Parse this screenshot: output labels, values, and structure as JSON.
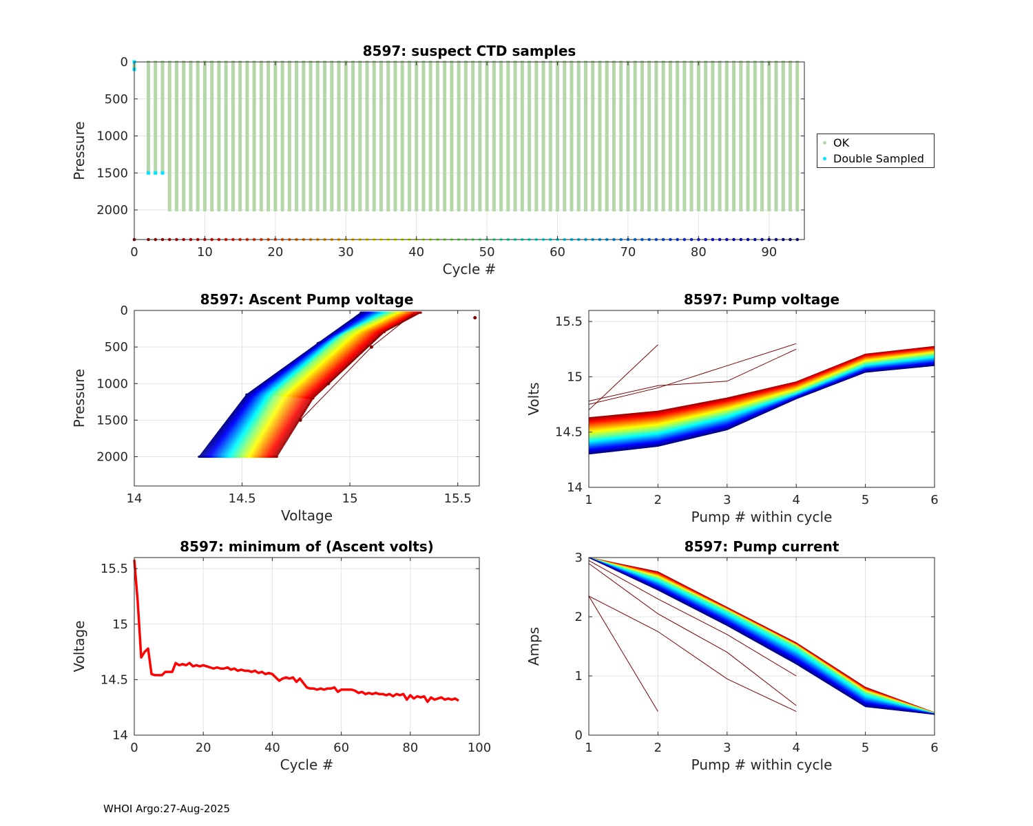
{
  "footer": {
    "text": "WHOI Argo:27-Aug-2025"
  },
  "legend": {
    "items": [
      {
        "label": "OK",
        "color": "#b5d7a8"
      },
      {
        "label": "Double Sampled",
        "color": "#00e5ff"
      }
    ]
  },
  "chart_data": [
    {
      "id": "ctd",
      "type": "scatter",
      "title": "8597: suspect CTD samples",
      "xlabel": "Cycle #",
      "ylabel": "Pressure",
      "xlim": [
        0,
        95
      ],
      "ylim": [
        0,
        2400
      ],
      "y_reversed": true,
      "grid": true,
      "xticks": [
        0,
        10,
        20,
        30,
        40,
        50,
        60,
        70,
        80,
        90
      ],
      "yticks": [
        0,
        500,
        1000,
        1500,
        2000
      ],
      "series": [
        {
          "name": "OK",
          "color": "#b5d7a8",
          "profile_max_pressure": {
            "cycles_0_to_1": 100,
            "cycles_2_to_4": 1500,
            "cycles_5_to_94": 2000
          }
        },
        {
          "name": "Double Sampled",
          "color": "#00e5ff",
          "points": [
            [
              0,
              0
            ],
            [
              0,
              100
            ],
            [
              2,
              1500
            ],
            [
              3,
              1500
            ],
            [
              4,
              1500
            ]
          ]
        }
      ],
      "cycle_markers": {
        "pressure": 2400,
        "first_cycle": 0,
        "last_cycle": 94,
        "missing_cycles": [
          1
        ]
      }
    },
    {
      "id": "ascent",
      "type": "line",
      "title": "8597: Ascent Pump voltage",
      "xlabel": "Voltage",
      "ylabel": "Pressure",
      "xlim": [
        14,
        15.6
      ],
      "ylim": [
        0,
        2400
      ],
      "y_reversed": true,
      "grid": true,
      "xticks": [
        14,
        14.5,
        15,
        15.5
      ],
      "yticks": [
        0,
        500,
        1000,
        1500,
        2000
      ],
      "note": "one line per cycle, colored by cycle number (red = early, blue = late)",
      "anchor_profiles": [
        {
          "cycle": 5,
          "points": [
            [
              14.65,
              2000
            ],
            [
              14.82,
              1200
            ],
            [
              15.15,
              300
            ],
            [
              15.32,
              30
            ]
          ]
        },
        {
          "cycle": 48,
          "points": [
            [
              14.48,
              2000
            ],
            [
              14.65,
              1150
            ],
            [
              14.98,
              300
            ],
            [
              15.18,
              30
            ]
          ]
        },
        {
          "cycle": 94,
          "points": [
            [
              14.3,
              2000
            ],
            [
              14.52,
              1150
            ],
            [
              14.85,
              450
            ],
            [
              15.05,
              30
            ]
          ]
        }
      ],
      "outliers": [
        [
          15.58,
          100
        ],
        [
          14.9,
          1000
        ],
        [
          15.1,
          500
        ],
        [
          14.77,
          1500
        ]
      ]
    },
    {
      "id": "pumpv",
      "type": "line",
      "title": "8597: Pump voltage",
      "xlabel": "Pump # within cycle",
      "ylabel": "Volts",
      "xlim": [
        1,
        6
      ],
      "ylim": [
        14,
        15.6
      ],
      "grid": true,
      "xticks": [
        1,
        2,
        3,
        4,
        5,
        6
      ],
      "yticks": [
        14,
        14.5,
        15,
        15.5
      ],
      "anchor_profiles": [
        {
          "cycle": 5,
          "values": [
            14.62,
            14.68,
            14.8,
            14.95,
            15.2,
            15.27
          ]
        },
        {
          "cycle": 48,
          "values": [
            14.45,
            14.52,
            14.67,
            14.86,
            15.12,
            15.2
          ]
        },
        {
          "cycle": 94,
          "values": [
            14.3,
            14.37,
            14.52,
            14.8,
            15.04,
            15.1
          ]
        }
      ],
      "outliers": [
        {
          "values": [
            14.7,
            15.29
          ]
        },
        {
          "values": [
            14.75,
            14.9,
            15.1,
            15.3
          ]
        },
        {
          "values": [
            14.78,
            14.92,
            14.96,
            15.25
          ]
        }
      ]
    },
    {
      "id": "minv",
      "type": "line",
      "title": "8597: minimum of (Ascent volts)",
      "xlabel": "Cycle #",
      "ylabel": "Voltage",
      "xlim": [
        0,
        100
      ],
      "ylim": [
        14,
        15.6
      ],
      "grid": true,
      "xticks": [
        0,
        20,
        40,
        60,
        80,
        100
      ],
      "yticks": [
        14,
        14.5,
        15,
        15.5
      ],
      "color": "#ff0000",
      "x": [
        0,
        1,
        2,
        3,
        4,
        5,
        6,
        7,
        8,
        9,
        10,
        11,
        12,
        13,
        14,
        15,
        16,
        17,
        18,
        19,
        20,
        21,
        22,
        23,
        24,
        25,
        26,
        27,
        28,
        29,
        30,
        31,
        32,
        33,
        34,
        35,
        36,
        37,
        38,
        39,
        40,
        41,
        42,
        43,
        44,
        45,
        46,
        47,
        48,
        49,
        50,
        51,
        52,
        53,
        54,
        55,
        56,
        57,
        58,
        59,
        60,
        61,
        62,
        63,
        64,
        65,
        66,
        67,
        68,
        69,
        70,
        71,
        72,
        73,
        74,
        75,
        76,
        77,
        78,
        79,
        80,
        81,
        82,
        83,
        84,
        85,
        86,
        87,
        88,
        89,
        90,
        91,
        92,
        93,
        94
      ],
      "values": [
        15.58,
        15.2,
        14.7,
        14.75,
        14.78,
        14.55,
        14.54,
        14.54,
        14.54,
        14.57,
        14.57,
        14.57,
        14.65,
        14.63,
        14.64,
        14.63,
        14.65,
        14.62,
        14.63,
        14.62,
        14.63,
        14.62,
        14.61,
        14.6,
        14.61,
        14.6,
        14.6,
        14.61,
        14.59,
        14.6,
        14.58,
        14.59,
        14.58,
        14.58,
        14.57,
        14.58,
        14.56,
        14.57,
        14.55,
        14.56,
        14.55,
        14.52,
        14.49,
        14.51,
        14.52,
        14.51,
        14.52,
        14.48,
        14.51,
        14.47,
        14.43,
        14.42,
        14.42,
        14.41,
        14.42,
        14.41,
        14.42,
        14.42,
        14.43,
        14.39,
        14.41,
        14.41,
        14.41,
        14.41,
        14.4,
        14.38,
        14.39,
        14.37,
        14.38,
        14.37,
        14.38,
        14.37,
        14.37,
        14.36,
        14.37,
        14.35,
        14.37,
        14.36,
        14.37,
        14.32,
        14.36,
        14.33,
        14.35,
        14.34,
        14.35,
        14.3,
        14.34,
        14.32,
        14.33,
        14.34,
        14.32,
        14.33,
        14.32,
        14.33,
        14.31
      ]
    },
    {
      "id": "pumpc",
      "type": "line",
      "title": "8597: Pump current",
      "xlabel": "Pump # within cycle",
      "ylabel": "Amps",
      "xlim": [
        1,
        6
      ],
      "ylim": [
        0,
        3
      ],
      "grid": true,
      "xticks": [
        1,
        2,
        3,
        4,
        5,
        6
      ],
      "yticks": [
        0,
        1,
        2,
        3
      ],
      "anchor_profiles": [
        {
          "cycle": 5,
          "values": [
            3.0,
            2.75,
            2.15,
            1.55,
            0.8,
            0.38
          ]
        },
        {
          "cycle": 48,
          "values": [
            3.0,
            2.65,
            2.1,
            1.5,
            0.72,
            0.37
          ]
        },
        {
          "cycle": 94,
          "values": [
            3.0,
            2.45,
            1.85,
            1.2,
            0.48,
            0.35
          ]
        }
      ],
      "outliers": [
        {
          "values": [
            2.35,
            0.4
          ]
        },
        {
          "values": [
            2.35,
            1.75,
            0.95,
            0.4
          ]
        },
        {
          "values": [
            2.9,
            2.05,
            1.4,
            0.5
          ]
        },
        {
          "values": [
            2.95,
            2.3,
            1.7,
            1.0
          ]
        }
      ]
    }
  ]
}
